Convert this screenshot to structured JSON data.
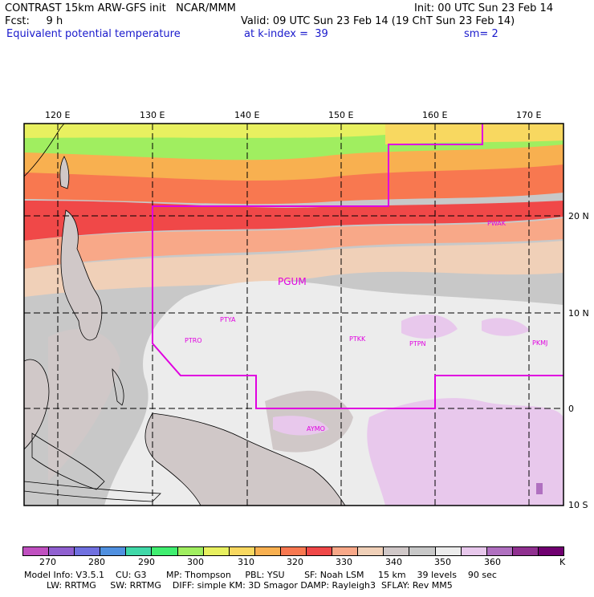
{
  "header": {
    "model_title": "CONTRAST 15km ARW-GFS init   NCAR/MMM",
    "init_label": "Init: 00 UTC Sun 23 Feb 14",
    "fcst_label": "Fcst:     9 h",
    "valid_label": "Valid: 09 UTC Sun 23 Feb 14 (19 ChT Sun 23 Feb 14)",
    "field_name": "Equivalent potential temperature",
    "level_label": "at k-index =  39",
    "smoothing_label": "sm= 2"
  },
  "map": {
    "lon_labels": [
      "120 E",
      "130 E",
      "140 E",
      "150 E",
      "160 E",
      "170 E"
    ],
    "lat_labels": [
      "20 N",
      "10 N",
      "0",
      "10 S"
    ],
    "stations": [
      "PWAK",
      "PGUM",
      "PTYA",
      "PTRO",
      "PTKK",
      "PTPN",
      "PKMJ",
      "AYMO"
    ]
  },
  "colorbar": {
    "unit": "K",
    "ticks": [
      "270",
      "280",
      "290",
      "300",
      "310",
      "320",
      "330",
      "340",
      "350",
      "360"
    ],
    "colors": [
      "#c050c0",
      "#9060d0",
      "#7070e0",
      "#5090e0",
      "#40d8a8",
      "#40ee70",
      "#a0ee60",
      "#e8f060",
      "#f8d860",
      "#f8b050",
      "#f87850",
      "#f04848",
      "#f8a888",
      "#f0d0b8",
      "#d0c8c8",
      "#c8c8c8",
      "#ececec",
      "#e8c8ec",
      "#b070c0",
      "#903090",
      "#700070"
    ]
  },
  "model_info": {
    "line1": "Model Info: V3.5.1    CU: G3       MP: Thompson     PBL: YSU       SF: Noah LSM     15 km    39 levels    90 sec",
    "line2": "        LW: RRTMG     SW: RRTMG    DIFF: simple KM: 3D Smagor DAMP: Rayleigh3  SFLAY: Rev MM5"
  }
}
